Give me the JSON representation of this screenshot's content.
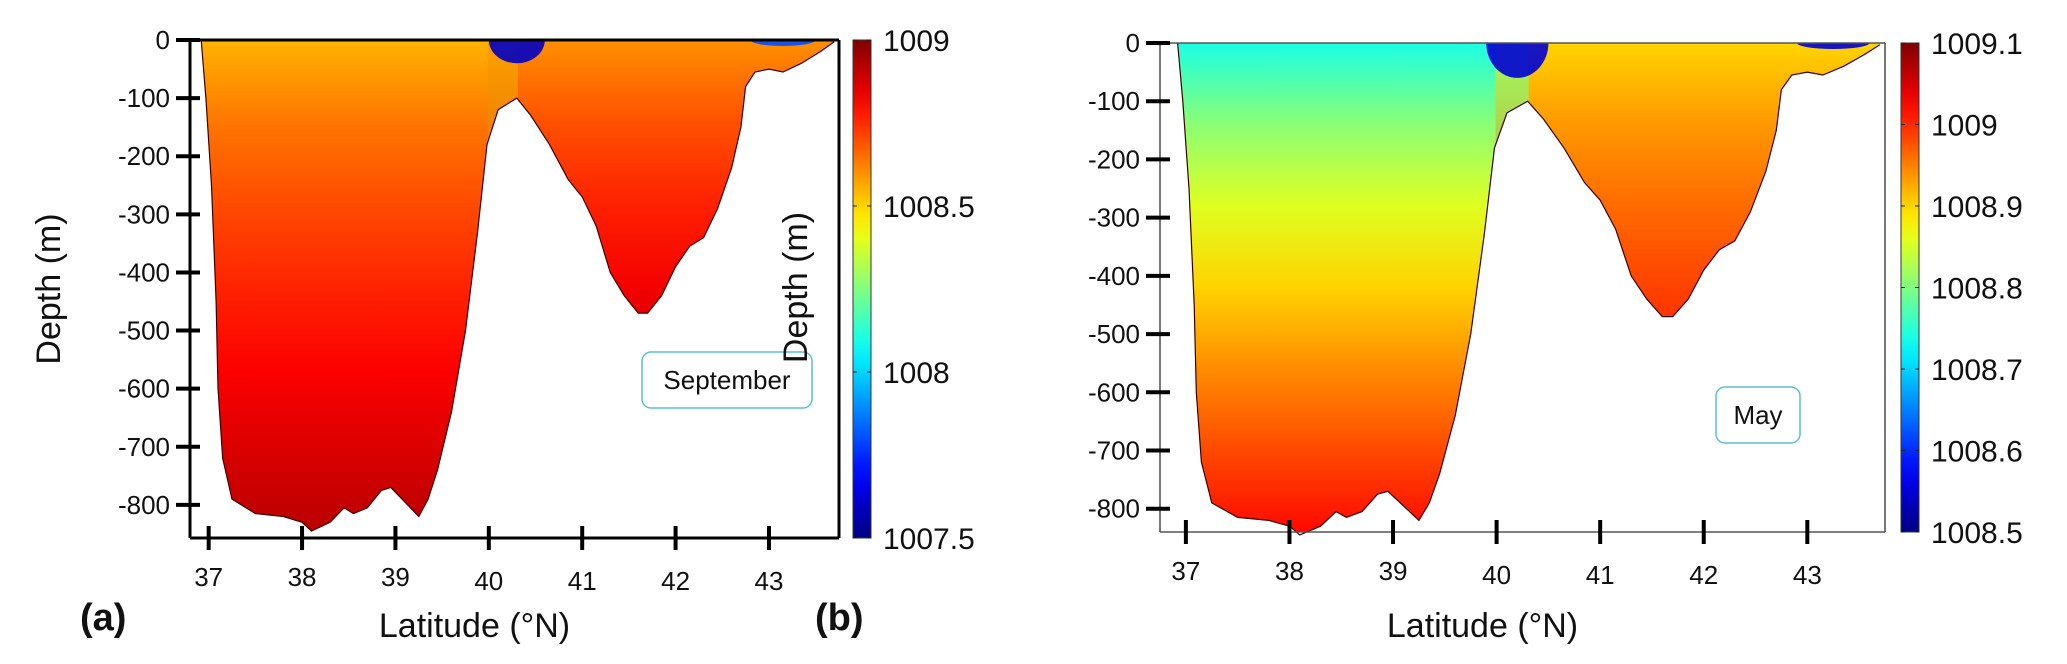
{
  "figure": {
    "panels": [
      "a",
      "b"
    ]
  },
  "chart_data": [
    {
      "id": "a",
      "type": "heatmap",
      "panel_tag": "(a)",
      "month_label": "September",
      "title": "",
      "xlabel": "Latitude (°N)",
      "ylabel": "Depth (m)",
      "xlim": [
        36.8,
        43.75
      ],
      "ylim": [
        -857,
        0
      ],
      "xticks": [
        37,
        38,
        39,
        40,
        41,
        42,
        43
      ],
      "xtick_labels": [
        "37",
        "38",
        "39",
        "40",
        "41",
        "42",
        "43"
      ],
      "yticks": [
        0,
        -100,
        -200,
        -300,
        -400,
        -500,
        -600,
        -700,
        -800
      ],
      "ytick_labels": [
        "0",
        "-100",
        "-200",
        "-300",
        "-400",
        "-500",
        "-600",
        "-700",
        "-800"
      ],
      "colorbar": {
        "range": [
          1007.5,
          1009
        ],
        "ticks": [
          1009,
          1008.5,
          1008,
          1007.5
        ],
        "tick_labels": [
          "1009",
          "1008.5",
          "1008",
          "1007.5"
        ],
        "colormap": "jet"
      },
      "field_description": "Density section: western basin (37-40°N) ~1008.8-1008.9 with lighter (~1008.5) surface layer; eastern basin (40.3-43°N) ~1008.95-1009; lighter surface patches near 40.2°N and 42.9°N (~1007.5-1008)",
      "regions": [
        {
          "name": "western-basin",
          "lat_range": [
            36.9,
            40.0
          ],
          "surface_value": 1008.55,
          "deep_value": 1008.92
        },
        {
          "name": "eastern-basin",
          "lat_range": [
            40.3,
            43.7
          ],
          "surface_value": 1008.6,
          "deep_value": 1009.0
        },
        {
          "name": "surface-fresh-40N",
          "lat_range": [
            40.0,
            40.6
          ],
          "depth_range": [
            0,
            -40
          ],
          "value": 1007.6
        },
        {
          "name": "surface-fresh-43N",
          "lat_range": [
            42.8,
            43.5
          ],
          "depth_range": [
            0,
            -10
          ],
          "value": 1007.8
        }
      ]
    },
    {
      "id": "b",
      "type": "heatmap",
      "panel_tag": "(b)",
      "month_label": "May",
      "title": "",
      "xlabel": "Latitude (°N)",
      "ylabel": "Depth (m)",
      "xlim": [
        36.75,
        43.75
      ],
      "ylim": [
        -840,
        0
      ],
      "xticks": [
        37,
        38,
        39,
        40,
        41,
        42,
        43
      ],
      "xtick_labels": [
        "37",
        "38",
        "39",
        "40",
        "41",
        "42",
        "43"
      ],
      "yticks": [
        0,
        -100,
        -200,
        -300,
        -400,
        -500,
        -600,
        -700,
        -800
      ],
      "ytick_labels": [
        "0",
        "-100",
        "-200",
        "-300",
        "-400",
        "-500",
        "-600",
        "-700",
        "-800"
      ],
      "colorbar": {
        "range": [
          1008.5,
          1009.1
        ],
        "ticks": [
          1009.1,
          1009,
          1008.9,
          1008.8,
          1008.7,
          1008.6,
          1008.5
        ],
        "tick_labels": [
          "1009.1",
          "1009",
          "1008.9",
          "1008.8",
          "1008.7",
          "1008.6",
          "1008.5"
        ],
        "colormap": "jet"
      },
      "field_description": "Density section: western basin grades from ~1008.75 at surface through ~1008.82 at 200 m to ~1009.0 near 800 m; eastern basin ~1008.95-1009.05; lighter surface patches near 40.2°N and 43°N (~1008.5)",
      "regions": [
        {
          "name": "western-basin",
          "lat_range": [
            36.9,
            40.0
          ],
          "surface_value": 1008.74,
          "deep_value": 1009.02
        },
        {
          "name": "eastern-basin",
          "lat_range": [
            40.3,
            43.7
          ],
          "surface_value": 1008.9,
          "deep_value": 1009.05
        },
        {
          "name": "surface-fresh-40N",
          "lat_range": [
            39.9,
            40.5
          ],
          "depth_range": [
            0,
            -60
          ],
          "value": 1008.55
        },
        {
          "name": "surface-fresh-43N",
          "lat_range": [
            42.9,
            43.6
          ],
          "depth_range": [
            0,
            -10
          ],
          "value": 1008.55
        }
      ]
    }
  ],
  "bathymetry": {
    "description": "Sea-floor profile (latitude °N, depth m) shared by both sections",
    "points": [
      [
        36.92,
        0
      ],
      [
        36.97,
        -100
      ],
      [
        37.03,
        -250
      ],
      [
        37.08,
        -450
      ],
      [
        37.1,
        -600
      ],
      [
        37.15,
        -720
      ],
      [
        37.25,
        -790
      ],
      [
        37.5,
        -815
      ],
      [
        37.8,
        -820
      ],
      [
        38.0,
        -830
      ],
      [
        38.1,
        -845
      ],
      [
        38.3,
        -830
      ],
      [
        38.45,
        -805
      ],
      [
        38.55,
        -815
      ],
      [
        38.7,
        -805
      ],
      [
        38.85,
        -775
      ],
      [
        38.95,
        -770
      ],
      [
        39.1,
        -795
      ],
      [
        39.25,
        -820
      ],
      [
        39.35,
        -790
      ],
      [
        39.45,
        -740
      ],
      [
        39.6,
        -640
      ],
      [
        39.75,
        -500
      ],
      [
        39.88,
        -330
      ],
      [
        39.98,
        -180
      ],
      [
        40.1,
        -120
      ],
      [
        40.3,
        -100
      ],
      [
        40.45,
        -130
      ],
      [
        40.65,
        -180
      ],
      [
        40.85,
        -240
      ],
      [
        41.0,
        -270
      ],
      [
        41.15,
        -320
      ],
      [
        41.3,
        -400
      ],
      [
        41.45,
        -440
      ],
      [
        41.6,
        -470
      ],
      [
        41.7,
        -470
      ],
      [
        41.85,
        -440
      ],
      [
        42.0,
        -390
      ],
      [
        42.15,
        -355
      ],
      [
        42.3,
        -340
      ],
      [
        42.45,
        -290
      ],
      [
        42.6,
        -220
      ],
      [
        42.7,
        -150
      ],
      [
        42.75,
        -80
      ],
      [
        42.85,
        -55
      ],
      [
        43.0,
        -50
      ],
      [
        43.15,
        -55
      ],
      [
        43.35,
        -40
      ],
      [
        43.55,
        -20
      ],
      [
        43.7,
        -3
      ]
    ]
  }
}
